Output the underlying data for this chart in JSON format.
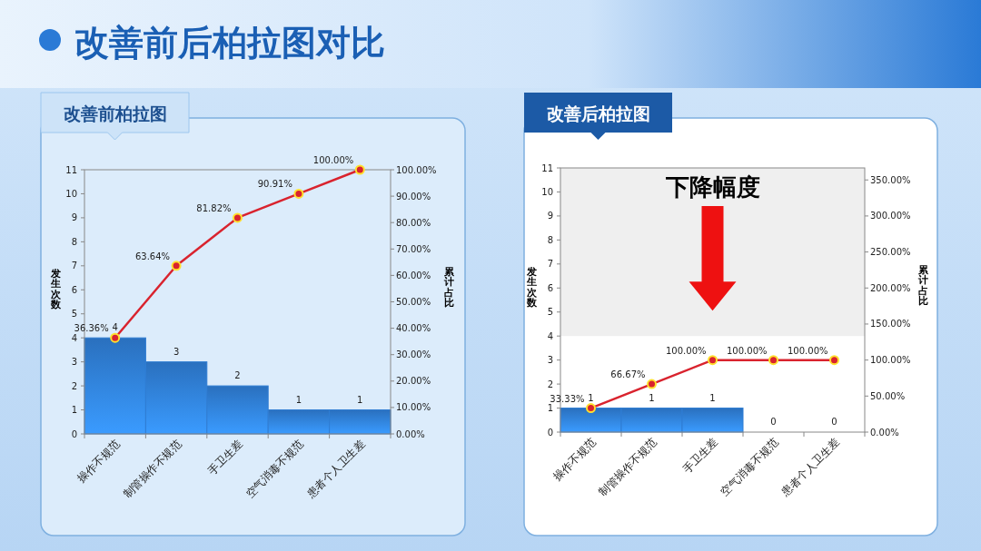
{
  "chart_data": [
    {
      "type": "bar",
      "title": "改善前柏拉图",
      "annotations": [
        "改善前后柏拉图对比"
      ],
      "categories": [
        "操作不规范",
        "制管操作不规范",
        "手卫生差",
        "空气消毒不规范",
        "患者个人卫生差"
      ],
      "ylabel": "发生次数",
      "y2label": "累计占比",
      "ylim": [
        0,
        11
      ],
      "yticks": [
        0,
        1,
        2,
        3,
        4,
        5,
        6,
        7,
        8,
        9,
        10,
        11
      ],
      "y2lim": [
        0,
        100
      ],
      "y2ticks": [
        {
          "value": 0,
          "label": "0.00%"
        },
        {
          "value": 10,
          "label": "10.00%"
        },
        {
          "value": 20,
          "label": "20.00%"
        },
        {
          "value": 30,
          "label": "30.00%"
        },
        {
          "value": 40,
          "label": "40.00%"
        },
        {
          "value": 50,
          "label": "50.00%"
        },
        {
          "value": 60,
          "label": "60.00%"
        },
        {
          "value": 70,
          "label": "70.00%"
        },
        {
          "value": 80,
          "label": "80.00%"
        },
        {
          "value": 90,
          "label": "90.00%"
        },
        {
          "value": 100,
          "label": "100.00%"
        }
      ],
      "series": [
        {
          "type": "bar",
          "color": "#2f7dd3",
          "values": [
            4,
            3,
            2,
            1,
            1
          ],
          "value_labels": [
            "4",
            "3",
            "2",
            "1",
            "1"
          ]
        },
        {
          "type": "line",
          "axis": "y2",
          "color": "#d9232e",
          "marker": "circle",
          "values": [
            36.36,
            63.64,
            81.82,
            90.91,
            100
          ],
          "value_labels": [
            "36.36%",
            "63.64%",
            "81.82%",
            "90.91%",
            "100.00%"
          ]
        }
      ]
    },
    {
      "type": "bar",
      "title": "改善后柏拉图",
      "categories": [
        "操作不规范",
        "制管操作不规范",
        "手卫生差",
        "空气消毒不规范",
        "患者个人卫生差"
      ],
      "ylabel": "发生次数",
      "y2label": "累计占比",
      "ylim": [
        0,
        11
      ],
      "yticks": [
        0,
        1,
        2,
        3,
        4,
        5,
        6,
        7,
        8,
        9,
        10,
        11
      ],
      "y2lim": [
        0,
        366.67
      ],
      "y2ticks": [
        {
          "value": 0,
          "label": "0.00%"
        },
        {
          "value": 50,
          "label": "50.00%"
        },
        {
          "value": 100,
          "label": "100.00%"
        },
        {
          "value": 150,
          "label": "150.00%"
        },
        {
          "value": 200,
          "label": "200.00%"
        },
        {
          "value": 250,
          "label": "250.00%"
        },
        {
          "value": 300,
          "label": "300.00%"
        },
        {
          "value": 350,
          "label": "350.00%"
        }
      ],
      "bands": [
        {
          "axis": "y",
          "from": 4,
          "to": 11,
          "label": "下降幅度",
          "color": "#efefef"
        }
      ],
      "series": [
        {
          "type": "bar",
          "color": "#2f7dd3",
          "values": [
            1,
            1,
            1,
            0,
            0
          ],
          "value_labels": [
            "1",
            "1",
            "1",
            "0",
            "0"
          ]
        },
        {
          "type": "line",
          "axis": "y2",
          "color": "#d9232e",
          "marker": "circle",
          "values": [
            33.33,
            66.67,
            100,
            100,
            100
          ],
          "value_labels": [
            "33.33%",
            "66.67%",
            "100.00%",
            "100.00%",
            "100.00%"
          ]
        }
      ]
    }
  ]
}
